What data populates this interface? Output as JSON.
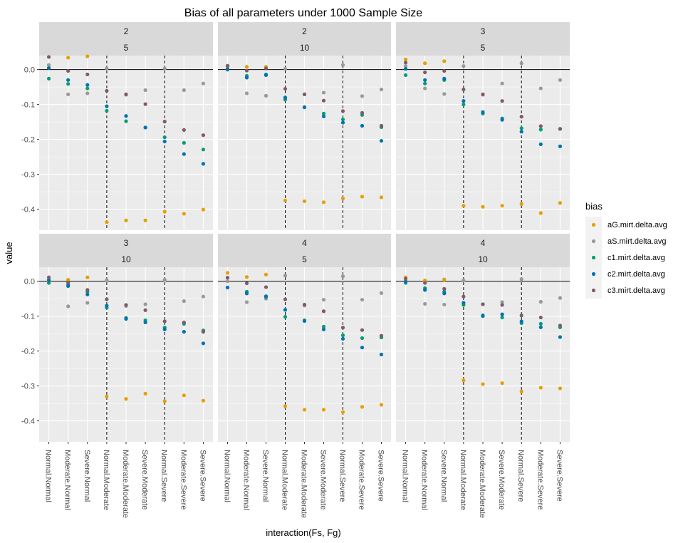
{
  "chart_data": {
    "type": "scatter",
    "title": "Bias of all parameters under 1000 Sample Size",
    "xlabel": "interaction(Fs, Fg)",
    "ylabel": "value",
    "categories": [
      "Normal.Normal",
      "Moderate.Normal",
      "Severe.Normal",
      "Normal.Moderate",
      "Moderate.Moderate",
      "Severe.Moderate",
      "Normal.Severe",
      "Moderate.Severe",
      "Severe.Severe"
    ],
    "y_ticks": [
      0.0,
      -0.1,
      -0.2,
      -0.3,
      -0.4
    ],
    "y_tick_labels": [
      "0.0",
      "-0.1",
      "-0.2",
      "-0.3",
      "-0.4"
    ],
    "ylim": [
      -0.46,
      0.04
    ],
    "hline": 0.0,
    "vlines_between_categories": [
      3.5,
      6.5
    ],
    "grid": true,
    "legend": {
      "title": "bias",
      "placement": "right",
      "entries": [
        "aG.mirt.delta.avg",
        "aS.mirt.delta.avg",
        "c1.mirt.delta.avg",
        "c2.mirt.delta.avg",
        "c3.mirt.delta.avg"
      ]
    },
    "series_colors": {
      "aG.mirt.delta.avg": "#E69F00",
      "aS.mirt.delta.avg": "#999999",
      "c1.mirt.delta.avg": "#009E73",
      "c2.mirt.delta.avg": "#0072B2",
      "c3.mirt.delta.avg": "#7F5A6A"
    },
    "panels": [
      {
        "strip": [
          "2",
          "5"
        ],
        "series": [
          {
            "name": "aG.mirt.delta.avg",
            "values": [
              0.005,
              0.034,
              0.038,
              -0.437,
              -0.432,
              -0.432,
              -0.407,
              -0.413,
              -0.401
            ]
          },
          {
            "name": "aS.mirt.delta.avg",
            "values": [
              0.013,
              -0.071,
              -0.068,
              0.003,
              -0.072,
              -0.059,
              0.003,
              -0.059,
              -0.04
            ]
          },
          {
            "name": "c1.mirt.delta.avg",
            "values": [
              -0.026,
              -0.041,
              -0.054,
              -0.118,
              -0.148,
              -0.166,
              -0.194,
              -0.21,
              -0.229
            ]
          },
          {
            "name": "c2.mirt.delta.avg",
            "values": [
              0.004,
              -0.03,
              -0.044,
              -0.105,
              -0.133,
              -0.166,
              -0.206,
              -0.242,
              -0.27
            ]
          },
          {
            "name": "c3.mirt.delta.avg",
            "values": [
              0.036,
              -0.004,
              -0.014,
              -0.061,
              -0.071,
              -0.099,
              -0.149,
              -0.173,
              -0.188
            ]
          }
        ]
      },
      {
        "strip": [
          "2",
          "10"
        ],
        "series": [
          {
            "name": "aG.mirt.delta.avg",
            "values": [
              0.009,
              0.008,
              0.008,
              -0.375,
              -0.377,
              -0.38,
              -0.369,
              -0.364,
              -0.366
            ]
          },
          {
            "name": "aS.mirt.delta.avg",
            "values": [
              0.0,
              -0.068,
              -0.075,
              0.002,
              -0.071,
              -0.066,
              0.013,
              -0.076,
              -0.057
            ]
          },
          {
            "name": "c1.mirt.delta.avg",
            "values": [
              0.0,
              -0.018,
              -0.014,
              -0.086,
              -0.108,
              -0.126,
              -0.143,
              -0.13,
              -0.165
            ]
          },
          {
            "name": "c2.mirt.delta.avg",
            "values": [
              0.002,
              -0.023,
              -0.016,
              -0.08,
              -0.108,
              -0.134,
              -0.152,
              -0.161,
              -0.204
            ]
          },
          {
            "name": "c3.mirt.delta.avg",
            "values": [
              0.011,
              -0.003,
              0.003,
              -0.055,
              -0.071,
              -0.089,
              -0.119,
              -0.124,
              -0.161
            ]
          }
        ]
      },
      {
        "strip": [
          "3",
          "5"
        ],
        "series": [
          {
            "name": "aG.mirt.delta.avg",
            "values": [
              0.029,
              0.018,
              0.024,
              -0.39,
              -0.393,
              -0.39,
              -0.385,
              -0.411,
              -0.382
            ]
          },
          {
            "name": "aS.mirt.delta.avg",
            "values": [
              0.01,
              -0.054,
              -0.07,
              0.01,
              -0.072,
              -0.04,
              0.018,
              -0.054,
              -0.03
            ]
          },
          {
            "name": "c1.mirt.delta.avg",
            "values": [
              -0.016,
              -0.04,
              -0.03,
              -0.1,
              -0.126,
              -0.14,
              -0.168,
              -0.172,
              -0.17
            ]
          },
          {
            "name": "c2.mirt.delta.avg",
            "values": [
              0.002,
              -0.03,
              -0.026,
              -0.09,
              -0.122,
              -0.144,
              -0.178,
              -0.214,
              -0.22
            ]
          },
          {
            "name": "c3.mirt.delta.avg",
            "values": [
              0.02,
              -0.008,
              -0.004,
              -0.057,
              -0.071,
              -0.09,
              -0.135,
              -0.162,
              -0.17
            ]
          }
        ]
      },
      {
        "strip": [
          "3",
          "10"
        ],
        "series": [
          {
            "name": "aG.mirt.delta.avg",
            "values": [
              0.004,
              0.004,
              0.011,
              -0.33,
              -0.337,
              -0.322,
              -0.344,
              -0.327,
              -0.342
            ]
          },
          {
            "name": "aS.mirt.delta.avg",
            "values": [
              0.0,
              -0.072,
              -0.062,
              0.003,
              -0.071,
              -0.066,
              0.004,
              -0.057,
              -0.044
            ]
          },
          {
            "name": "c1.mirt.delta.avg",
            "values": [
              -0.005,
              -0.01,
              -0.03,
              -0.076,
              -0.105,
              -0.112,
              -0.133,
              -0.122,
              -0.141
            ]
          },
          {
            "name": "c2.mirt.delta.avg",
            "values": [
              0.003,
              -0.014,
              -0.038,
              -0.07,
              -0.108,
              -0.118,
              -0.138,
              -0.145,
              -0.178
            ]
          },
          {
            "name": "c3.mirt.delta.avg",
            "values": [
              0.011,
              -0.004,
              -0.025,
              -0.052,
              -0.068,
              -0.083,
              -0.115,
              -0.118,
              -0.145
            ]
          }
        ]
      },
      {
        "strip": [
          "4",
          "5"
        ],
        "series": [
          {
            "name": "aG.mirt.delta.avg",
            "values": [
              0.024,
              0.012,
              0.019,
              -0.358,
              -0.368,
              -0.368,
              -0.375,
              -0.36,
              -0.354
            ]
          },
          {
            "name": "aS.mirt.delta.avg",
            "values": [
              0.0,
              -0.06,
              -0.05,
              0.016,
              -0.07,
              -0.053,
              0.014,
              -0.053,
              -0.034
            ]
          },
          {
            "name": "c1.mirt.delta.avg",
            "values": [
              -0.018,
              -0.03,
              -0.045,
              -0.102,
              -0.112,
              -0.13,
              -0.155,
              -0.163,
              -0.161
            ]
          },
          {
            "name": "c2.mirt.delta.avg",
            "values": [
              -0.018,
              -0.035,
              -0.043,
              -0.082,
              -0.114,
              -0.138,
              -0.165,
              -0.19,
              -0.21
            ]
          },
          {
            "name": "c3.mirt.delta.avg",
            "values": [
              0.01,
              -0.006,
              -0.017,
              -0.052,
              -0.067,
              -0.086,
              -0.133,
              -0.14,
              -0.156
            ]
          }
        ]
      },
      {
        "strip": [
          "4",
          "10"
        ],
        "series": [
          {
            "name": "aG.mirt.delta.avg",
            "values": [
              0.011,
              0.002,
              0.005,
              -0.284,
              -0.295,
              -0.292,
              -0.316,
              -0.305,
              -0.307
            ]
          },
          {
            "name": "aS.mirt.delta.avg",
            "values": [
              0.0,
              -0.065,
              -0.067,
              0.002,
              -0.066,
              -0.06,
              0.006,
              -0.059,
              -0.048
            ]
          },
          {
            "name": "c1.mirt.delta.avg",
            "values": [
              -0.005,
              -0.02,
              -0.03,
              -0.068,
              -0.1,
              -0.104,
              -0.12,
              -0.122,
              -0.132
            ]
          },
          {
            "name": "c2.mirt.delta.avg",
            "values": [
              -0.001,
              -0.025,
              -0.035,
              -0.062,
              -0.098,
              -0.095,
              -0.115,
              -0.132,
              -0.16
            ]
          },
          {
            "name": "c3.mirt.delta.avg",
            "values": [
              0.007,
              -0.005,
              -0.022,
              -0.044,
              -0.066,
              -0.068,
              -0.098,
              -0.104,
              -0.127
            ]
          }
        ]
      }
    ]
  }
}
